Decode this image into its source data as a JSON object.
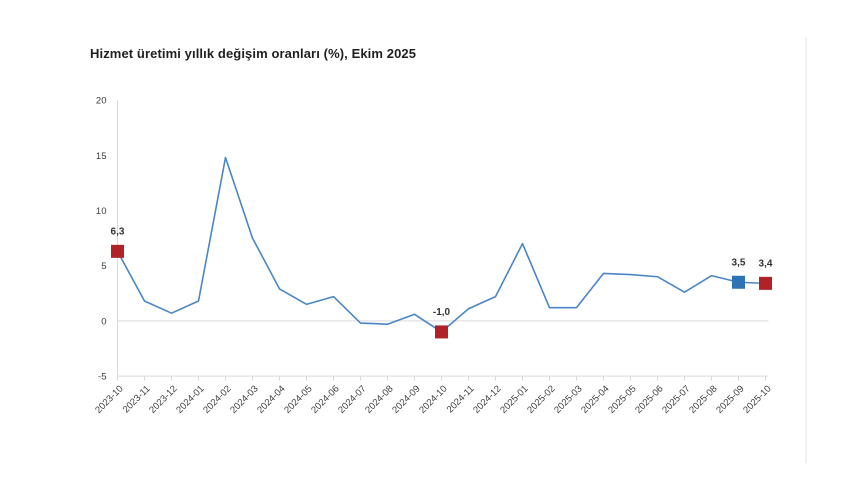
{
  "chart_data": {
    "type": "line",
    "title": "Hizmet üretimi yıllık değişim oranları (%), Ekim 2025",
    "xlabel": "",
    "ylabel": "",
    "ylim": [
      -5,
      20
    ],
    "yticks": [
      20,
      15,
      10,
      5,
      0,
      -5
    ],
    "legend_position": "none",
    "grid": "horizontal line at 0 and baseline at -5 only",
    "decimal_separator": ",",
    "x": [
      "2023-10",
      "2023-11",
      "2023-12",
      "2024-01",
      "2024-02",
      "2024-03",
      "2024-04",
      "2024-05",
      "2024-06",
      "2024-07",
      "2024-08",
      "2024-09",
      "2024-10",
      "2024-11",
      "2024-12",
      "2025-01",
      "2025-02",
      "2025-03",
      "2025-04",
      "2025-05",
      "2025-06",
      "2025-07",
      "2025-08",
      "2025-09",
      "2025-10"
    ],
    "values": [
      6.3,
      1.8,
      0.7,
      1.8,
      14.8,
      7.5,
      2.9,
      1.5,
      2.2,
      -0.2,
      -0.3,
      0.6,
      -1.0,
      1.1,
      2.2,
      7.0,
      1.2,
      1.2,
      4.3,
      4.2,
      4.0,
      2.6,
      4.1,
      3.5,
      3.4
    ],
    "highlights": [
      {
        "month": "2023-10",
        "label": "6,3",
        "marker": "square",
        "color": "#b02227"
      },
      {
        "month": "2024-10",
        "label": "-1,0",
        "marker": "square",
        "color": "#b02227"
      },
      {
        "month": "2025-09",
        "label": "3,5",
        "marker": "square",
        "color": "#2e74b5"
      },
      {
        "month": "2025-10",
        "label": "3,4",
        "marker": "square",
        "color": "#b02227"
      }
    ],
    "colors": {
      "line": "#4a86c5",
      "marker_red": "#b02227",
      "marker_blue": "#2e74b5",
      "axis_line": "#d9d9d9",
      "right_border": "#e3e3e3",
      "tick_text": "#3f3f3f",
      "data_label_text": "#333333",
      "title_text": "#1f1f1f"
    }
  }
}
